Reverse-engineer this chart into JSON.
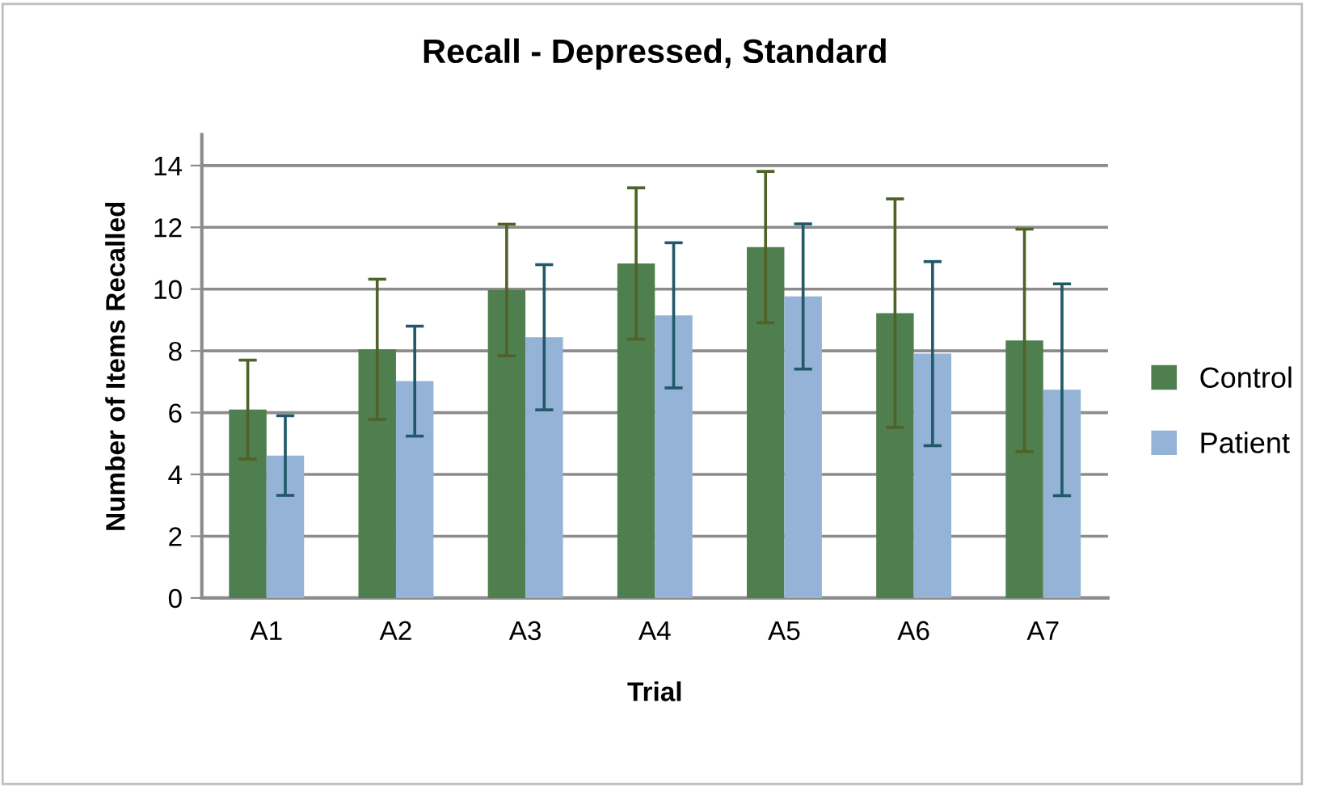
{
  "chart_data": {
    "type": "bar",
    "title": "Recall - Depressed, Standard",
    "xlabel": "Trial",
    "ylabel": "Number of Items Recalled",
    "categories": [
      "A1",
      "A2",
      "A3",
      "A4",
      "A5",
      "A6",
      "A7"
    ],
    "series": [
      {
        "name": "Control",
        "color": "#507f4f",
        "values": [
          6.1,
          8.05,
          9.97,
          10.83,
          11.36,
          9.22,
          8.34
        ],
        "errors": [
          1.6,
          2.27,
          2.13,
          2.45,
          2.45,
          3.7,
          3.6
        ]
      },
      {
        "name": "Patient",
        "color": "#95b3d7",
        "values": [
          4.61,
          7.02,
          8.44,
          9.15,
          9.76,
          7.91,
          6.74
        ],
        "errors": [
          1.29,
          1.78,
          2.35,
          2.35,
          2.35,
          2.98,
          3.43
        ]
      }
    ],
    "ylim": [
      0,
      15
    ],
    "yticks": [
      0,
      2,
      4,
      6,
      8,
      10,
      12,
      14
    ],
    "grid": "y",
    "legend": "right"
  }
}
